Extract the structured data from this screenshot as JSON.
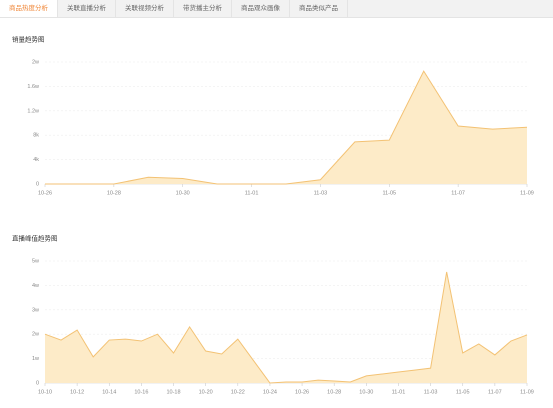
{
  "tabs": [
    "商品热度分析",
    "关联直播分析",
    "关联视频分析",
    "带货播主分析",
    "商品观众画像",
    "商品类似产品"
  ],
  "active_tab": 0,
  "chart_data": [
    {
      "type": "area",
      "title": "销量趋势图",
      "color": "#f3c274",
      "fill": "#fdebc8",
      "grid": true,
      "categories": [
        "10-26",
        null,
        "10-28",
        null,
        "10-30",
        null,
        "11-01",
        null,
        "11-03",
        null,
        "11-05",
        null,
        "11-07",
        null,
        "11-09"
      ],
      "values": [
        0,
        0,
        0,
        1100,
        900,
        0,
        0,
        0,
        700,
        6900,
        7200,
        18500,
        9500,
        9000,
        9300
      ],
      "ylim": [
        0,
        20000
      ],
      "yticks": [
        0,
        {
          "value": 4000,
          "label": "4k"
        },
        {
          "value": 8000,
          "label": "8k"
        },
        {
          "value": 12000,
          "label": "1.2w"
        },
        {
          "value": 16000,
          "label": "1.6w"
        },
        {
          "value": 20000,
          "label": "2w"
        }
      ]
    },
    {
      "type": "area",
      "title": "直播峰值趋势图",
      "color": "#f3c274",
      "fill": "#fdebc8",
      "grid": true,
      "categories": [
        "10-10",
        null,
        "10-12",
        null,
        "10-14",
        null,
        "10-16",
        null,
        "10-18",
        null,
        "10-20",
        null,
        "10-22",
        null,
        "10-24",
        null,
        "10-26",
        null,
        "10-28",
        null,
        "10-30",
        null,
        "11-01",
        null,
        "11-03",
        null,
        "11-05",
        null,
        "11-07",
        null,
        "11-09"
      ],
      "values": [
        20000,
        17600,
        21700,
        10700,
        17600,
        18000,
        17200,
        20000,
        12300,
        23000,
        13100,
        11900,
        18000,
        9000,
        0,
        400,
        400,
        1200,
        800,
        400,
        2900,
        3700,
        4500,
        5300,
        6100,
        45500,
        12300,
        16000,
        11500,
        17200,
        19700
      ],
      "ylim": [
        0,
        50000
      ],
      "yticks": [
        0,
        {
          "value": 10000,
          "label": "1w"
        },
        {
          "value": 20000,
          "label": "2w"
        },
        {
          "value": 30000,
          "label": "3w"
        },
        {
          "value": 40000,
          "label": "4w"
        },
        {
          "value": 50000,
          "label": "5w"
        }
      ]
    }
  ]
}
